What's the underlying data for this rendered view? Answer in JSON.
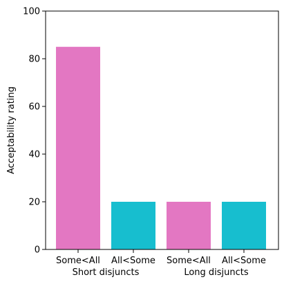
{
  "chart_data": {
    "type": "bar",
    "categories": [
      "Some<All",
      "All<Some",
      "Some<All",
      "All<Some"
    ],
    "groups": [
      "Short disjuncts",
      "Long disjuncts"
    ],
    "values": [
      85,
      20,
      20,
      20
    ],
    "ylabel": "Acceptability rating",
    "xlabel": "",
    "ylim": [
      0,
      100
    ],
    "yticks": [
      0,
      20,
      40,
      60,
      80,
      100
    ],
    "grid": false,
    "legend": "none",
    "bar_colors": [
      "#e377c2",
      "#17becf",
      "#e377c2",
      "#17becf"
    ],
    "axis_color": "#000000",
    "background": "#ffffff"
  }
}
